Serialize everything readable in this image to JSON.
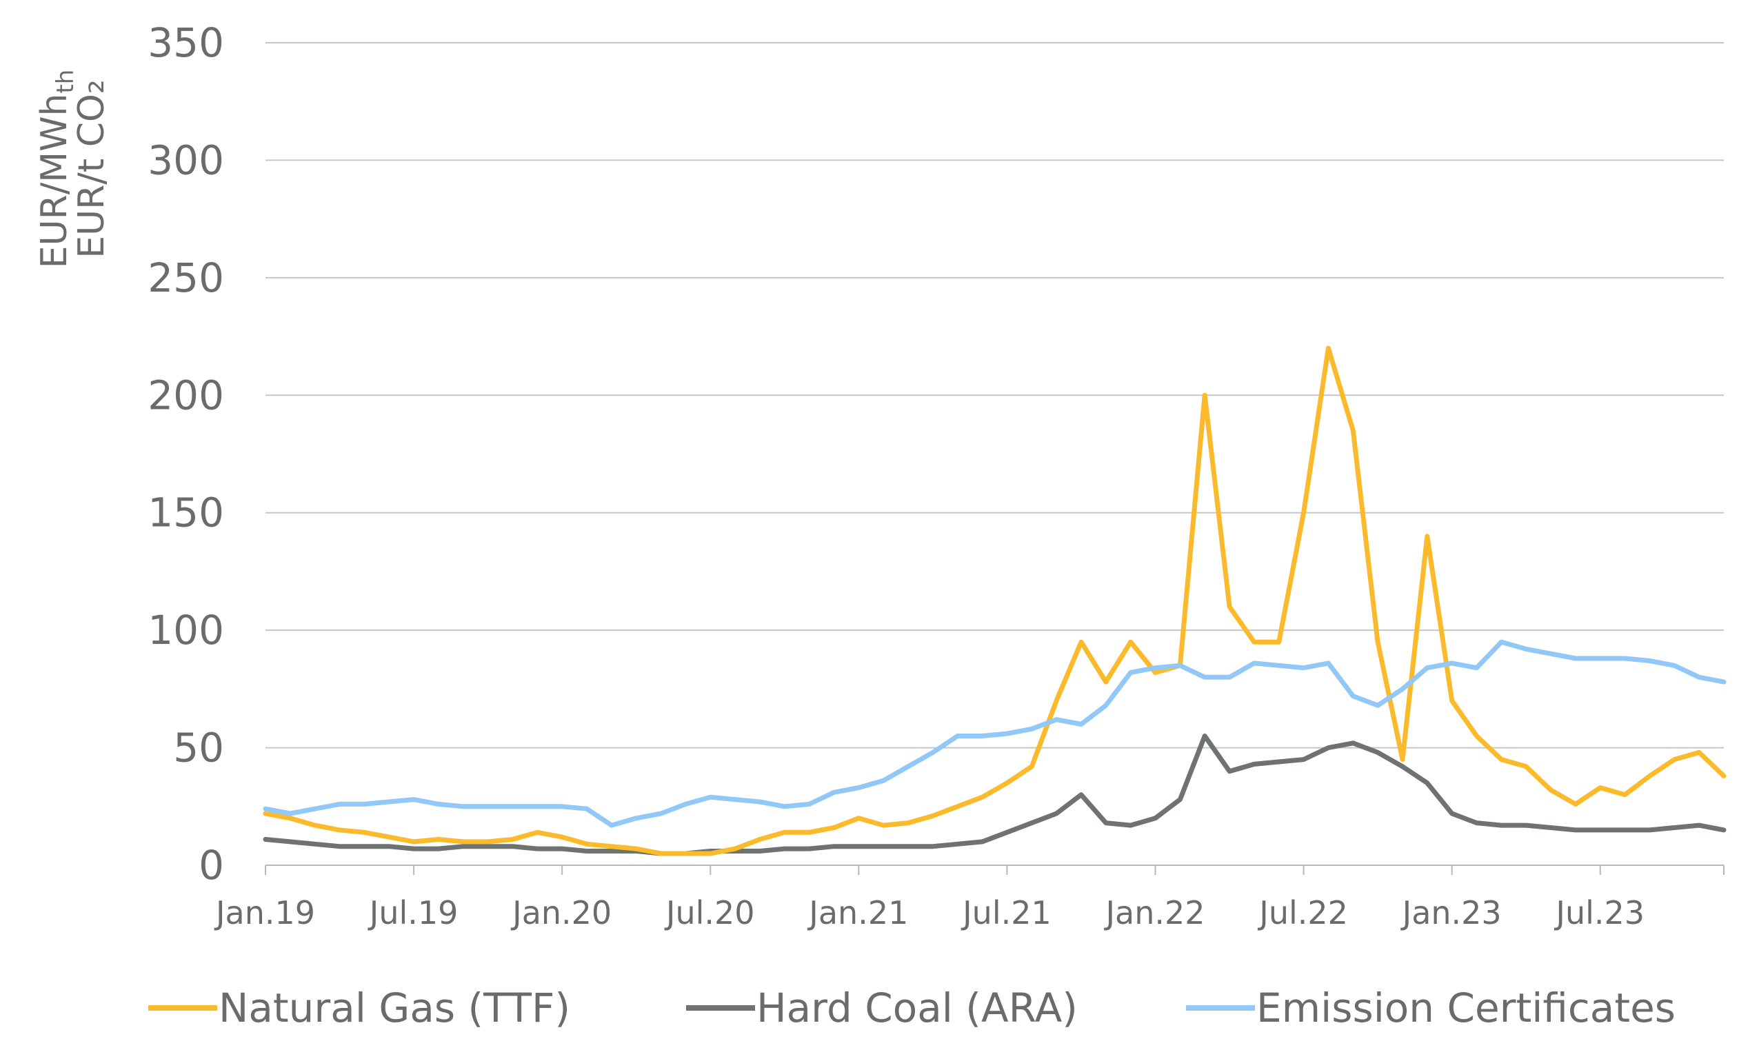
{
  "chart_data": {
    "type": "line",
    "title": "",
    "xlabel": "",
    "ylabel_line1": "EUR/MWh",
    "ylabel_line1_sub": "th",
    "ylabel_line2": "EUR/t CO₂",
    "ylim": [
      0,
      350
    ],
    "yticks": [
      0,
      50,
      100,
      150,
      200,
      250,
      300,
      350
    ],
    "xlim": [
      "2019-01",
      "2023-12"
    ],
    "xtick_labels": [
      "Jan.19",
      "Jul.19",
      "Jan.20",
      "Jul.20",
      "Jan.21",
      "Jul.21",
      "Jan.22",
      "Jul.22",
      "Jan.23",
      "Jul.23"
    ],
    "grid": "horizontal",
    "legend_position": "bottom",
    "x": [
      "2019-01",
      "2019-02",
      "2019-03",
      "2019-04",
      "2019-05",
      "2019-06",
      "2019-07",
      "2019-08",
      "2019-09",
      "2019-10",
      "2019-11",
      "2019-12",
      "2020-01",
      "2020-02",
      "2020-03",
      "2020-04",
      "2020-05",
      "2020-06",
      "2020-07",
      "2020-08",
      "2020-09",
      "2020-10",
      "2020-11",
      "2020-12",
      "2021-01",
      "2021-02",
      "2021-03",
      "2021-04",
      "2021-05",
      "2021-06",
      "2021-07",
      "2021-08",
      "2021-09",
      "2021-10",
      "2021-11",
      "2021-12",
      "2022-01",
      "2022-02",
      "2022-03",
      "2022-04",
      "2022-05",
      "2022-06",
      "2022-07",
      "2022-08",
      "2022-09",
      "2022-10",
      "2022-11",
      "2022-12",
      "2023-01",
      "2023-02",
      "2023-03",
      "2023-04",
      "2023-05",
      "2023-06",
      "2023-07",
      "2023-08",
      "2023-09",
      "2023-10",
      "2023-11",
      "2023-12"
    ],
    "series": [
      {
        "name": "Natural Gas (TTF)",
        "color": "#FBBA2C",
        "values": [
          22,
          20,
          17,
          15,
          14,
          12,
          10,
          11,
          10,
          10,
          11,
          14,
          12,
          9,
          8,
          7,
          5,
          5,
          5,
          7,
          11,
          14,
          14,
          16,
          20,
          17,
          18,
          21,
          25,
          29,
          35,
          42,
          70,
          95,
          78,
          95,
          82,
          85,
          200,
          110,
          95,
          95,
          150,
          220,
          185,
          95,
          45,
          140,
          70,
          55,
          45,
          42,
          32,
          26,
          33,
          30,
          38,
          45,
          48,
          38
        ]
      },
      {
        "name": "Hard Coal (ARA)",
        "color": "#6E7270",
        "values": [
          11,
          10,
          9,
          8,
          8,
          8,
          7,
          7,
          8,
          8,
          8,
          7,
          7,
          6,
          6,
          6,
          5,
          5,
          6,
          6,
          6,
          7,
          7,
          8,
          8,
          8,
          8,
          8,
          9,
          10,
          14,
          18,
          22,
          30,
          18,
          17,
          20,
          28,
          55,
          40,
          43,
          44,
          45,
          50,
          52,
          48,
          42,
          35,
          22,
          18,
          17,
          17,
          16,
          15,
          15,
          15,
          15,
          16,
          17,
          15
        ]
      },
      {
        "name": "Emission Certificates",
        "color": "#92C8F7",
        "values": [
          24,
          22,
          24,
          26,
          26,
          27,
          28,
          26,
          25,
          25,
          25,
          25,
          25,
          24,
          17,
          20,
          22,
          26,
          29,
          28,
          27,
          25,
          26,
          31,
          33,
          36,
          42,
          48,
          55,
          55,
          56,
          58,
          62,
          60,
          68,
          82,
          84,
          85,
          80,
          80,
          86,
          85,
          84,
          86,
          72,
          68,
          75,
          84,
          86,
          84,
          95,
          92,
          90,
          88,
          88,
          88,
          87,
          85,
          80,
          78
        ]
      }
    ]
  }
}
